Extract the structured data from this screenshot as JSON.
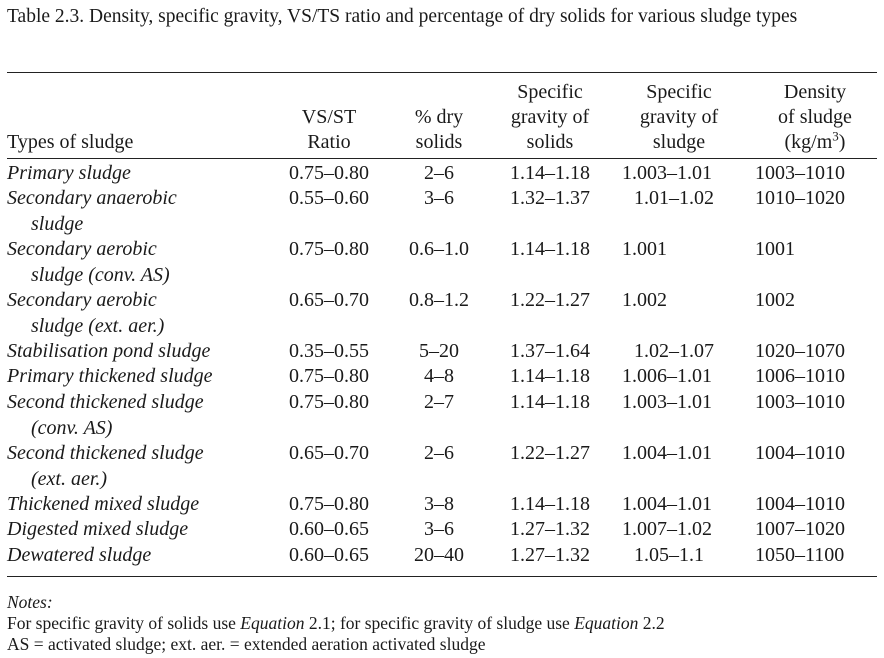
{
  "caption": "Table 2.3. Density, specific gravity, VS/TS ratio and percentage of dry solids for various sludge types",
  "headers": {
    "types": "Types of sludge",
    "vs_line1": "VS/ST",
    "vs_line2": "Ratio",
    "dry_line1": "% dry",
    "dry_line2": "solids",
    "sgs_line1": "Specific",
    "sgs_line2": "gravity of",
    "sgs_line3": "solids",
    "sgsl_line1": "Specific",
    "sgsl_line2": "gravity of",
    "sgsl_line3": "sludge",
    "den_line1": "Density",
    "den_line2": "of sludge",
    "den_line3_pre": "(kg/m",
    "den_line3_sup": "3",
    "den_line3_post": ")"
  },
  "rows": [
    {
      "type1": "Primary sludge",
      "type2": "",
      "vs": "0.75–0.80",
      "dry": "2–6",
      "sgs": "1.14–1.18",
      "sgsl": "1.003–1.01",
      "den": "1003–1010"
    },
    {
      "type1": "Secondary anaerobic",
      "type2": "sludge",
      "vs": "0.55–0.60",
      "dry": "3–6",
      "sgs": "1.32–1.37",
      "sgsl": "1.01–1.02",
      "den": "1010–1020"
    },
    {
      "type1": "Secondary aerobic",
      "type2": "sludge (conv. AS)",
      "vs": "0.75–0.80",
      "dry": "0.6–1.0",
      "sgs": "1.14–1.18",
      "sgsl": "1.001",
      "den": "1001"
    },
    {
      "type1": "Secondary aerobic",
      "type2": "sludge (ext. aer.)",
      "vs": "0.65–0.70",
      "dry": "0.8–1.2",
      "sgs": "1.22–1.27",
      "sgsl": "1.002",
      "den": "1002"
    },
    {
      "type1": "Stabilisation pond sludge",
      "type2": "",
      "vs": "0.35–0.55",
      "dry": "5–20",
      "sgs": "1.37–1.64",
      "sgsl": "1.02–1.07",
      "den": "1020–1070"
    },
    {
      "type1": "Primary thickened sludge",
      "type2": "",
      "vs": "0.75–0.80",
      "dry": "4–8",
      "sgs": "1.14–1.18",
      "sgsl": "1.006–1.01",
      "den": "1006–1010"
    },
    {
      "type1": "Second thickened sludge",
      "type2": "(conv. AS)",
      "vs": "0.75–0.80",
      "dry": "2–7",
      "sgs": "1.14–1.18",
      "sgsl": "1.003–1.01",
      "den": "1003–1010"
    },
    {
      "type1": "Second thickened sludge",
      "type2": "(ext. aer.)",
      "vs": "0.65–0.70",
      "dry": "2–6",
      "sgs": "1.22–1.27",
      "sgsl": "1.004–1.01",
      "den": "1004–1010"
    },
    {
      "type1": "Thickened mixed sludge",
      "type2": "",
      "vs": "0.75–0.80",
      "dry": "3–8",
      "sgs": "1.14–1.18",
      "sgsl": "1.004–1.01",
      "den": "1004–1010"
    },
    {
      "type1": "Digested mixed sludge",
      "type2": "",
      "vs": "0.60–0.65",
      "dry": "3–6",
      "sgs": "1.27–1.32",
      "sgsl": "1.007–1.02",
      "den": "1007–1020"
    },
    {
      "type1": "Dewatered sludge",
      "type2": "",
      "vs": "0.60–0.65",
      "dry": "20–40",
      "sgs": "1.27–1.32",
      "sgsl": "1.05–1.1",
      "den": "1050–1100"
    }
  ],
  "notes": {
    "title": "Notes:",
    "line1_a": "For specific gravity of solids use ",
    "line1_b": "Equation",
    "line1_c": " 2.1; for specific gravity of sludge use ",
    "line1_d": "Equation",
    "line1_e": " 2.2",
    "line2": "AS = activated sludge; ext. aer. = extended aeration activated sludge"
  }
}
